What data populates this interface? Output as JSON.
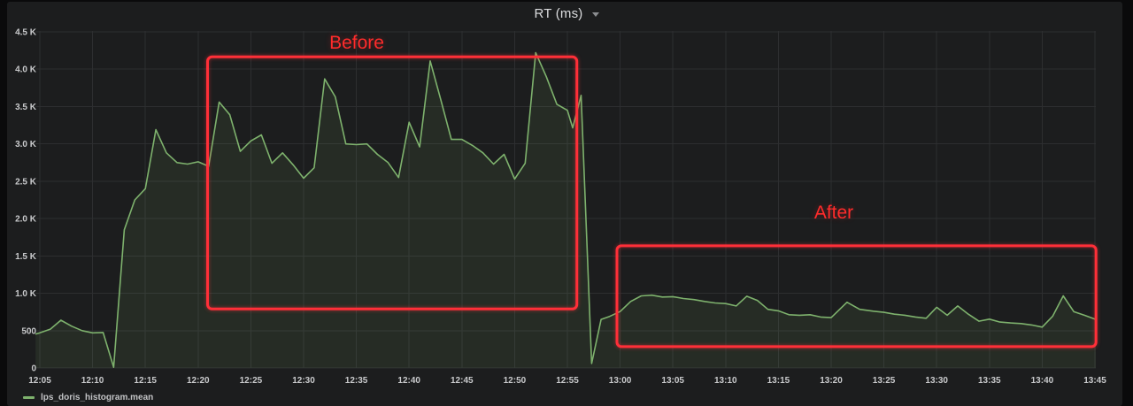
{
  "panel": {
    "title": "RT (ms)"
  },
  "legend": {
    "series_label": "lps_doris_histogram.mean"
  },
  "annotations": {
    "before": {
      "label": "Before",
      "t_start": 15.9,
      "t_end": 50.9,
      "v_min": 790,
      "v_max": 4165
    },
    "after": {
      "label": "After",
      "t_start": 54.7,
      "t_end": 100.1,
      "v_min": 285,
      "v_max": 1635
    }
  },
  "colors": {
    "page_bg": "#0a0a0b",
    "panel_bg": "#1c1d1e",
    "grid": "#2d2e30",
    "axis_text": "#c9cacc",
    "title_text": "#dcdddf",
    "series_green": "#7eb26d",
    "annotation_red": "#ff2f38",
    "legend_text": "#c2c3c5"
  },
  "chart_data": {
    "type": "area",
    "title": "RT (ms)",
    "unit": "ms",
    "ylim": [
      0,
      4500
    ],
    "grid": true,
    "legend_position": "bottom-left",
    "x_axis_note": "t = minutes after 12:05",
    "x_ticks": [
      {
        "t": 0,
        "label": "12:05"
      },
      {
        "t": 5,
        "label": "12:10"
      },
      {
        "t": 10,
        "label": "12:15"
      },
      {
        "t": 15,
        "label": "12:20"
      },
      {
        "t": 20,
        "label": "12:25"
      },
      {
        "t": 25,
        "label": "12:30"
      },
      {
        "t": 30,
        "label": "12:35"
      },
      {
        "t": 35,
        "label": "12:40"
      },
      {
        "t": 40,
        "label": "12:45"
      },
      {
        "t": 45,
        "label": "12:50"
      },
      {
        "t": 50,
        "label": "12:55"
      },
      {
        "t": 55,
        "label": "13:00"
      },
      {
        "t": 60,
        "label": "13:05"
      },
      {
        "t": 65,
        "label": "13:10"
      },
      {
        "t": 70,
        "label": "13:15"
      },
      {
        "t": 75,
        "label": "13:20"
      },
      {
        "t": 80,
        "label": "13:25"
      },
      {
        "t": 85,
        "label": "13:30"
      },
      {
        "t": 90,
        "label": "13:35"
      },
      {
        "t": 95,
        "label": "13:40"
      },
      {
        "t": 100,
        "label": "13:45"
      }
    ],
    "y_ticks": [
      {
        "value": 0,
        "label": "0"
      },
      {
        "value": 500,
        "label": "500"
      },
      {
        "value": 1000,
        "label": "1.0 K"
      },
      {
        "value": 1500,
        "label": "1.5 K"
      },
      {
        "value": 2000,
        "label": "2.0 K"
      },
      {
        "value": 2500,
        "label": "2.5 K"
      },
      {
        "value": 3000,
        "label": "3.0 K"
      },
      {
        "value": 3500,
        "label": "3.5 K"
      },
      {
        "value": 4000,
        "label": "4.0 K"
      },
      {
        "value": 4500,
        "label": "4.5 K"
      }
    ],
    "series": [
      {
        "name": "lps_doris_histogram.mean",
        "color": "#7eb26d",
        "fill_opacity": 0.1,
        "points": [
          [
            -0.4,
            455
          ],
          [
            0,
            470
          ],
          [
            1,
            520
          ],
          [
            2,
            640
          ],
          [
            3,
            560
          ],
          [
            4,
            500
          ],
          [
            5,
            470
          ],
          [
            6,
            475
          ],
          [
            7,
            10
          ],
          [
            8,
            1850
          ],
          [
            9,
            2250
          ],
          [
            10,
            2400
          ],
          [
            11,
            3190
          ],
          [
            12,
            2880
          ],
          [
            13,
            2750
          ],
          [
            14,
            2730
          ],
          [
            15,
            2760
          ],
          [
            16,
            2700
          ],
          [
            17,
            3560
          ],
          [
            18,
            3390
          ],
          [
            19,
            2900
          ],
          [
            20,
            3040
          ],
          [
            21,
            3120
          ],
          [
            22,
            2740
          ],
          [
            23,
            2880
          ],
          [
            24,
            2720
          ],
          [
            25,
            2540
          ],
          [
            26,
            2680
          ],
          [
            27,
            3870
          ],
          [
            28,
            3630
          ],
          [
            29,
            3000
          ],
          [
            30,
            2990
          ],
          [
            31,
            3000
          ],
          [
            32,
            2860
          ],
          [
            33,
            2750
          ],
          [
            34,
            2550
          ],
          [
            35,
            3290
          ],
          [
            36,
            2960
          ],
          [
            37,
            4110
          ],
          [
            38,
            3590
          ],
          [
            39,
            3060
          ],
          [
            40,
            3060
          ],
          [
            41,
            2980
          ],
          [
            42,
            2880
          ],
          [
            43,
            2730
          ],
          [
            44,
            2860
          ],
          [
            45,
            2530
          ],
          [
            46,
            2740
          ],
          [
            47,
            4220
          ],
          [
            48,
            3900
          ],
          [
            49,
            3530
          ],
          [
            50,
            3450
          ],
          [
            50.5,
            3215
          ],
          [
            51.3,
            3650
          ],
          [
            52.3,
            60
          ],
          [
            53.2,
            650
          ],
          [
            54,
            690
          ],
          [
            55,
            755
          ],
          [
            56,
            890
          ],
          [
            57,
            965
          ],
          [
            58,
            975
          ],
          [
            59,
            950
          ],
          [
            60,
            955
          ],
          [
            61,
            930
          ],
          [
            62,
            915
          ],
          [
            63,
            890
          ],
          [
            64,
            870
          ],
          [
            65,
            862
          ],
          [
            66,
            830
          ],
          [
            67,
            960
          ],
          [
            68,
            905
          ],
          [
            69,
            785
          ],
          [
            70,
            765
          ],
          [
            71,
            713
          ],
          [
            72,
            706
          ],
          [
            73,
            713
          ],
          [
            74,
            682
          ],
          [
            75,
            674
          ],
          [
            76.5,
            880
          ],
          [
            77.7,
            785
          ],
          [
            79,
            760
          ],
          [
            80,
            745
          ],
          [
            81,
            720
          ],
          [
            82,
            706
          ],
          [
            83,
            682
          ],
          [
            84,
            666
          ],
          [
            85,
            812
          ],
          [
            86,
            706
          ],
          [
            87,
            830
          ],
          [
            88,
            720
          ],
          [
            89,
            627
          ],
          [
            90,
            654
          ],
          [
            91,
            615
          ],
          [
            92,
            603
          ],
          [
            93,
            595
          ],
          [
            94,
            576
          ],
          [
            95,
            547
          ],
          [
            96,
            694
          ],
          [
            97,
            965
          ],
          [
            98,
            753
          ],
          [
            99,
            706
          ],
          [
            100,
            654
          ],
          [
            100.4,
            630
          ]
        ]
      }
    ]
  }
}
